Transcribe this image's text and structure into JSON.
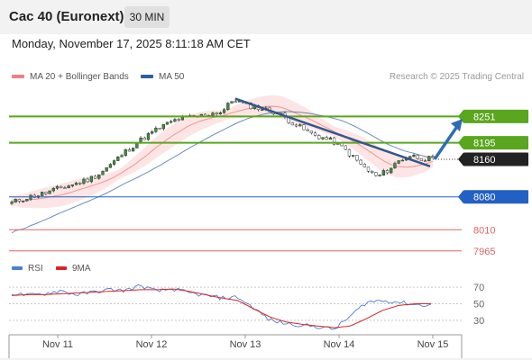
{
  "header": {
    "title": "Cac 40 (Euronext)",
    "timeframe": "30 MIN"
  },
  "datetime": "Monday, November 17, 2025 8:11:18 AM CET",
  "legend": {
    "ma20": {
      "label": "MA 20 + Bollinger Bands",
      "color": "#f08080"
    },
    "ma50": {
      "label": "MA 50",
      "color": "#2e5e9e"
    },
    "research": "Research © 2025 Trading Central"
  },
  "rsi_legend": {
    "rsi": {
      "label": "RSI",
      "color": "#4a7fd4"
    },
    "ma9": {
      "label": "9MA",
      "color": "#dd2222"
    }
  },
  "chart_data": [
    {
      "type": "candlestick",
      "title": "Cac 40 (Euronext)",
      "x_tick_labels": [
        "Nov 11",
        "Nov 12",
        "Nov 13",
        "Nov 14",
        "Nov 15"
      ],
      "y_range": [
        7955,
        8315
      ],
      "close_path": [
        8067,
        8076,
        8082,
        8088,
        8096,
        8103,
        8110,
        8118,
        8131,
        8150,
        8171,
        8190,
        8207,
        8222,
        8235,
        8246,
        8249,
        8252,
        8258,
        8261,
        8288,
        8276,
        8271,
        8265,
        8259,
        8243,
        8228,
        8214,
        8206,
        8198,
        8182,
        8160,
        8138,
        8122,
        8138,
        8158,
        8168,
        8162,
        8160
      ],
      "levels": [
        {
          "value": 8251,
          "label": "8251",
          "style": "resistance",
          "color": "#5aa61e"
        },
        {
          "value": 8195,
          "label": "8195",
          "style": "resistance",
          "color": "#5aa61e"
        },
        {
          "value": 8160,
          "label": "8160",
          "style": "last-price",
          "color": "#222222"
        },
        {
          "value": 8080,
          "label": "8080",
          "style": "support",
          "color": "#2360c4"
        },
        {
          "value": 8010,
          "label": "8010",
          "style": "support",
          "color": "#e06666"
        },
        {
          "value": 7965,
          "label": "7965",
          "style": "support",
          "color": "#e06666"
        }
      ],
      "trendline": {
        "from": 8289,
        "to": 8145,
        "color": "#34568b"
      },
      "forecast_arrow": {
        "from": 8160,
        "to": 8246,
        "color": "#2d6cb5"
      },
      "series": [
        {
          "name": "MA 20 + Bollinger Bands",
          "color": "#f08080"
        },
        {
          "name": "MA 50",
          "color": "#2e5e9e"
        }
      ]
    },
    {
      "type": "line",
      "y_range": [
        20,
        80
      ],
      "y_tick_labels": [
        "70",
        "50",
        "30"
      ],
      "guide_levels": [
        70,
        50,
        30
      ],
      "series": [
        {
          "name": "RSI",
          "color": "#4a7fd4",
          "values": [
            63,
            60,
            62,
            66,
            61,
            64,
            67,
            66,
            72,
            65,
            68,
            63,
            60,
            57,
            58,
            45,
            30,
            26,
            24,
            22,
            19,
            35,
            52,
            54,
            52,
            49,
            48
          ]
        },
        {
          "name": "9MA",
          "color": "#dd2222",
          "values": [
            60,
            61,
            61,
            62,
            63,
            64,
            65,
            66,
            67,
            67,
            68,
            65,
            61,
            57,
            54,
            44,
            34,
            28,
            25,
            23,
            21,
            23,
            32,
            42,
            48,
            50,
            50
          ]
        }
      ]
    }
  ]
}
